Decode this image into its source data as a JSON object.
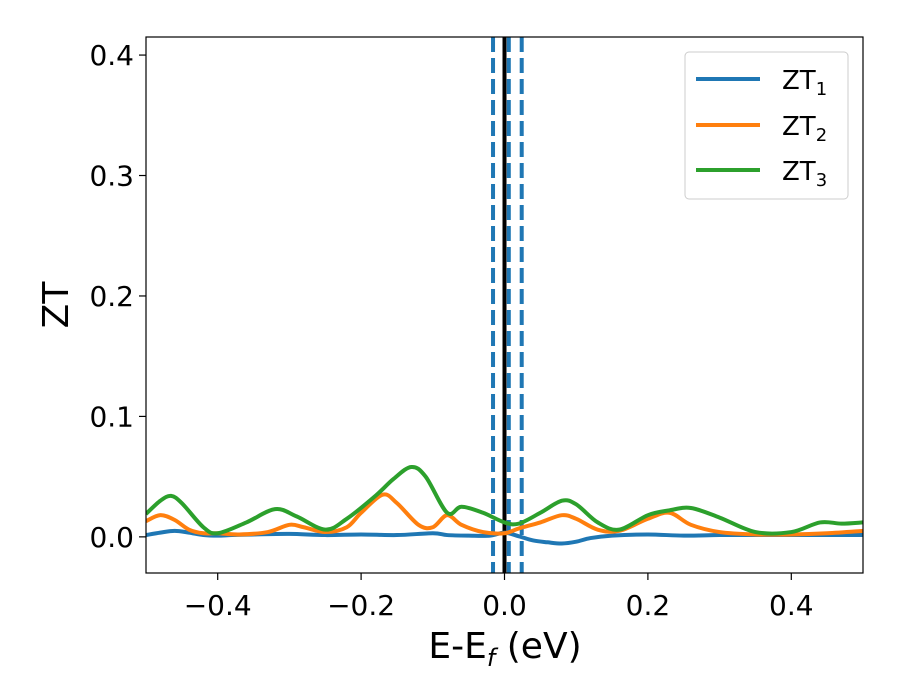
{
  "chart_data": {
    "type": "line",
    "xlabel_main": "E-E",
    "xlabel_sub": "f",
    "xlabel_unit": " (eV)",
    "ylabel": "ZT",
    "xlim": [
      -0.5,
      0.5
    ],
    "ylim": [
      -0.03,
      0.415
    ],
    "xticks": [
      {
        "value": -0.4,
        "label": "−0.4"
      },
      {
        "value": -0.2,
        "label": "−0.2"
      },
      {
        "value": 0.0,
        "label": "0.0"
      },
      {
        "value": 0.2,
        "label": "0.2"
      },
      {
        "value": 0.4,
        "label": "0.4"
      }
    ],
    "yticks": [
      {
        "value": 0.0,
        "label": "0.0"
      },
      {
        "value": 0.1,
        "label": "0.1"
      },
      {
        "value": 0.2,
        "label": "0.2"
      },
      {
        "value": 0.3,
        "label": "0.3"
      },
      {
        "value": 0.4,
        "label": "0.4"
      }
    ],
    "grid": false,
    "legend": "top-right",
    "vlines": [
      {
        "x": 0.0,
        "style": "solid",
        "color": "#000000"
      },
      {
        "x": -0.016,
        "style": "dashed",
        "color": "#1f77b4"
      },
      {
        "x": 0.006,
        "style": "dashed",
        "color": "#1f77b4"
      },
      {
        "x": 0.024,
        "style": "dashed",
        "color": "#1f77b4"
      }
    ],
    "series": [
      {
        "name": "ZT",
        "sub": "1",
        "color": "#1f77b4",
        "x": [
          -0.5,
          -0.48,
          -0.46,
          -0.44,
          -0.42,
          -0.4,
          -0.38,
          -0.35,
          -0.3,
          -0.25,
          -0.2,
          -0.15,
          -0.1,
          -0.08,
          -0.05,
          -0.02,
          0.0,
          0.02,
          0.04,
          0.06,
          0.08,
          0.1,
          0.12,
          0.15,
          0.2,
          0.25,
          0.3,
          0.35,
          0.4,
          0.45,
          0.5
        ],
        "values": [
          0.0015,
          0.0035,
          0.005,
          0.0035,
          0.0015,
          0.001,
          0.0015,
          0.002,
          0.0025,
          0.0015,
          0.002,
          0.0015,
          0.003,
          0.0015,
          0.001,
          0.001,
          0.0035,
          0.0005,
          -0.003,
          -0.0045,
          -0.0055,
          -0.004,
          -0.001,
          0.001,
          0.002,
          0.001,
          0.0015,
          0.0015,
          0.0015,
          0.0015,
          0.0015
        ]
      },
      {
        "name": "ZT",
        "sub": "2",
        "color": "#ff7f0e",
        "x": [
          -0.5,
          -0.48,
          -0.46,
          -0.44,
          -0.42,
          -0.4,
          -0.37,
          -0.33,
          -0.3,
          -0.28,
          -0.25,
          -0.22,
          -0.2,
          -0.17,
          -0.15,
          -0.12,
          -0.1,
          -0.08,
          -0.06,
          -0.03,
          0.0,
          0.02,
          0.05,
          0.08,
          0.1,
          0.13,
          0.16,
          0.2,
          0.23,
          0.26,
          0.3,
          0.35,
          0.4,
          0.45,
          0.5
        ],
        "values": [
          0.013,
          0.018,
          0.014,
          0.006,
          0.003,
          0.003,
          0.002,
          0.004,
          0.01,
          0.008,
          0.004,
          0.008,
          0.02,
          0.035,
          0.028,
          0.01,
          0.008,
          0.018,
          0.01,
          0.004,
          0.003,
          0.007,
          0.012,
          0.018,
          0.015,
          0.006,
          0.005,
          0.015,
          0.02,
          0.01,
          0.004,
          0.002,
          0.002,
          0.003,
          0.005
        ]
      },
      {
        "name": "ZT",
        "sub": "3",
        "color": "#2ca02c",
        "x": [
          -0.5,
          -0.48,
          -0.465,
          -0.45,
          -0.42,
          -0.4,
          -0.36,
          -0.32,
          -0.29,
          -0.25,
          -0.22,
          -0.18,
          -0.155,
          -0.13,
          -0.11,
          -0.08,
          -0.06,
          -0.03,
          0.0,
          0.02,
          0.05,
          0.08,
          0.1,
          0.13,
          0.16,
          0.2,
          0.23,
          0.26,
          0.3,
          0.35,
          0.4,
          0.44,
          0.47,
          0.5
        ],
        "values": [
          0.019,
          0.03,
          0.034,
          0.028,
          0.008,
          0.003,
          0.012,
          0.023,
          0.017,
          0.006,
          0.015,
          0.034,
          0.048,
          0.058,
          0.05,
          0.02,
          0.025,
          0.02,
          0.012,
          0.011,
          0.02,
          0.03,
          0.027,
          0.012,
          0.006,
          0.018,
          0.022,
          0.024,
          0.016,
          0.004,
          0.004,
          0.012,
          0.011,
          0.012
        ]
      }
    ]
  }
}
